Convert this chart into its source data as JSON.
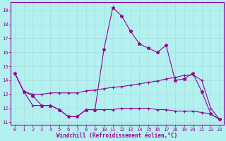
{
  "xlabel": "Windchill (Refroidissement éolien,°C)",
  "background_color": "#b3f0f0",
  "grid_color": "#c8e8e8",
  "line_color": "#990099",
  "xlim": [
    -0.5,
    23.5
  ],
  "ylim": [
    10.8,
    19.6
  ],
  "xticks": [
    0,
    1,
    2,
    3,
    4,
    5,
    6,
    7,
    8,
    9,
    10,
    11,
    12,
    13,
    14,
    15,
    16,
    17,
    18,
    19,
    20,
    21,
    22,
    23
  ],
  "yticks": [
    11,
    12,
    13,
    14,
    15,
    16,
    17,
    18,
    19
  ],
  "line1_x": [
    0,
    1,
    2,
    3,
    4,
    5,
    6,
    7,
    8,
    9,
    10,
    11,
    12,
    13,
    14,
    15,
    16,
    17,
    18,
    19,
    20,
    21,
    22,
    23
  ],
  "line1_y": [
    14.5,
    13.2,
    12.9,
    12.2,
    12.2,
    11.9,
    11.4,
    11.4,
    11.9,
    11.9,
    16.2,
    19.2,
    18.6,
    17.5,
    16.6,
    16.3,
    16.0,
    16.5,
    14.0,
    14.1,
    14.5,
    13.2,
    11.6,
    11.2
  ],
  "line2_x": [
    0,
    1,
    2,
    3,
    4,
    5,
    6,
    7,
    8,
    9,
    10,
    11,
    12,
    13,
    14,
    15,
    16,
    17,
    18,
    19,
    20,
    21,
    22,
    23
  ],
  "line2_y": [
    14.5,
    13.2,
    13.0,
    13.0,
    13.1,
    13.1,
    13.1,
    13.1,
    13.25,
    13.3,
    13.4,
    13.5,
    13.55,
    13.65,
    13.75,
    13.85,
    13.95,
    14.1,
    14.2,
    14.35,
    14.4,
    14.0,
    12.0,
    11.2
  ],
  "line3_x": [
    0,
    1,
    2,
    3,
    4,
    5,
    6,
    7,
    8,
    9,
    10,
    11,
    12,
    13,
    14,
    15,
    16,
    17,
    18,
    19,
    20,
    21,
    22,
    23
  ],
  "line3_y": [
    14.5,
    13.2,
    12.2,
    12.2,
    12.2,
    11.9,
    11.4,
    11.4,
    11.9,
    11.9,
    11.9,
    11.9,
    12.0,
    12.0,
    12.0,
    12.0,
    11.9,
    11.9,
    11.8,
    11.8,
    11.8,
    11.7,
    11.6,
    11.2
  ]
}
